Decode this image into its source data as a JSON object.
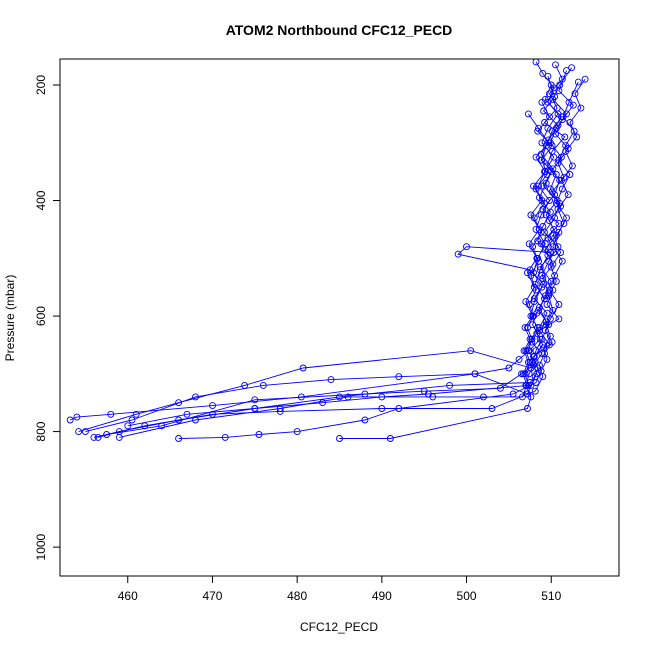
{
  "chart_data": {
    "type": "line",
    "title": "ATOM2 Northbound CFC12_PECD",
    "xlabel": "CFC12_PECD",
    "ylabel": "Pressure (mbar)",
    "xlim": [
      452,
      518
    ],
    "ylim": [
      1050,
      155
    ],
    "y_reversed": true,
    "xticks": [
      460,
      470,
      480,
      490,
      500,
      510
    ],
    "yticks": [
      200,
      400,
      600,
      800,
      1000
    ],
    "grid": false,
    "legend": "none",
    "color": "#0000ff",
    "marker": "open-circle",
    "series": [
      {
        "x": [
          508.2,
          509.0,
          510.3,
          509.6,
          511.2,
          510.1,
          509.4,
          508.8,
          510.6,
          509.9,
          511.0,
          510.4,
          509.2,
          510.8,
          509.7,
          508.9,
          510.2,
          509.5,
          510.9,
          508.6,
          509.8,
          507.9,
          508.4,
          508.1,
          507.6,
          507.2,
          501.0,
          480.5,
          470.0,
          458.0,
          454.0,
          453.2
        ],
        "y": [
          160,
          180,
          205,
          230,
          255,
          280,
          305,
          330,
          355,
          380,
          405,
          430,
          455,
          480,
          505,
          530,
          555,
          580,
          605,
          625,
          650,
          670,
          690,
          705,
          720,
          735,
          700,
          740,
          755,
          770,
          775,
          780
        ]
      },
      {
        "x": [
          510.5,
          511.3,
          509.8,
          510.7,
          509.2,
          511.6,
          510.1,
          509.5,
          511.0,
          510.4,
          509.0,
          510.9,
          509.6,
          510.3,
          508.7,
          510.0,
          509.3,
          508.5,
          509.7,
          508.9,
          508.2,
          507.8,
          508.3,
          507.5,
          498.0,
          485.0,
          475.0,
          466.0,
          459.0,
          456.5
        ],
        "y": [
          165,
          190,
          215,
          240,
          265,
          290,
          315,
          340,
          365,
          390,
          415,
          440,
          465,
          490,
          515,
          540,
          565,
          590,
          615,
          640,
          660,
          680,
          700,
          715,
          720,
          740,
          760,
          780,
          800,
          810
        ]
      },
      {
        "x": [
          512.4,
          511.0,
          510.2,
          511.8,
          510.6,
          509.9,
          511.2,
          510.0,
          509.1,
          510.7,
          509.4,
          510.3,
          508.8,
          509.9,
          500.0,
          499.0,
          507.5,
          509.1,
          508.0,
          509.5,
          508.6,
          507.7,
          508.9,
          507.9,
          506.5,
          504.0,
          495.0,
          488.0,
          475.0,
          464.0,
          457.5
        ],
        "y": [
          170,
          200,
          225,
          250,
          275,
          300,
          325,
          350,
          375,
          400,
          425,
          450,
          475,
          490,
          480,
          493,
          520,
          545,
          570,
          595,
          620,
          645,
          665,
          685,
          700,
          725,
          730,
          735,
          745,
          790,
          805
        ]
      },
      {
        "x": [
          511.8,
          510.9,
          512.6,
          511.3,
          510.5,
          512.0,
          510.8,
          511.5,
          510.1,
          511.1,
          509.8,
          510.6,
          509.3,
          510.2,
          509.0,
          509.7,
          508.6,
          509.4,
          508.3,
          509.0,
          508.0,
          507.6,
          500.5,
          480.7,
          473.8,
          466.0,
          461.0,
          454.2
        ],
        "y": [
          175,
          210,
          235,
          260,
          285,
          310,
          335,
          360,
          385,
          410,
          435,
          460,
          485,
          510,
          535,
          560,
          585,
          610,
          630,
          650,
          670,
          690,
          660,
          690,
          720,
          750,
          770,
          800
        ]
      },
      {
        "x": [
          509.6,
          510.4,
          509.1,
          510.8,
          509.7,
          508.8,
          510.2,
          509.4,
          508.6,
          509.9,
          509.0,
          508.4,
          509.6,
          508.7,
          508.1,
          509.2,
          508.3,
          507.8,
          508.7,
          507.4,
          506.2,
          505.0,
          501.0,
          492.0,
          484.0,
          476.0,
          468.0,
          460.5,
          455.0
        ],
        "y": [
          185,
          220,
          245,
          270,
          295,
          320,
          345,
          370,
          395,
          420,
          445,
          470,
          495,
          520,
          545,
          570,
          595,
          615,
          640,
          660,
          675,
          690,
          700,
          705,
          710,
          720,
          740,
          780,
          800
        ]
      },
      {
        "x": [
          513.2,
          512.1,
          511.4,
          512.7,
          511.7,
          510.9,
          512.2,
          511.3,
          510.6,
          511.8,
          510.9,
          510.2,
          511.3,
          510.4,
          509.8,
          510.9,
          509.9,
          509.3,
          510.1,
          509.2,
          508.6,
          509.0,
          508.1,
          503.0,
          490.0,
          478.0,
          470.0,
          462.0,
          456.0
        ],
        "y": [
          195,
          230,
          255,
          280,
          305,
          330,
          355,
          380,
          405,
          430,
          455,
          480,
          505,
          530,
          555,
          580,
          605,
          625,
          645,
          665,
          685,
          705,
          730,
          760,
          760,
          765,
          770,
          790,
          810
        ]
      },
      {
        "x": [
          507.3,
          508.5,
          509.7,
          508.2,
          509.3,
          507.9,
          508.9,
          507.6,
          508.6,
          507.4,
          508.3,
          507.2,
          508.0,
          507.0,
          507.8,
          506.9,
          507.5,
          506.8,
          507.3,
          506.7,
          507.1,
          506.6,
          502.0,
          496.0,
          486.0,
          478.0,
          468.0,
          459.0
        ],
        "y": [
          250,
          275,
          300,
          325,
          350,
          375,
          400,
          425,
          450,
          475,
          500,
          525,
          550,
          575,
          600,
          620,
          640,
          660,
          680,
          700,
          720,
          740,
          740,
          740,
          740,
          760,
          780,
          810
        ]
      },
      {
        "x": [
          514.0,
          512.8,
          513.5,
          512.2,
          513.0,
          511.7,
          512.5,
          511.2,
          512.0,
          510.8,
          511.5,
          510.4,
          511.1,
          510.0,
          510.6,
          509.7,
          510.2,
          509.4,
          509.9,
          509.1,
          509.5,
          508.8,
          508.2,
          505.5,
          492.0,
          488.0,
          480.0,
          475.5,
          471.5,
          466.0
        ],
        "y": [
          190,
          215,
          240,
          265,
          290,
          315,
          340,
          365,
          390,
          415,
          440,
          465,
          490,
          515,
          540,
          565,
          590,
          615,
          635,
          655,
          675,
          695,
          715,
          735,
          760,
          780,
          800,
          805,
          810,
          812
        ]
      },
      {
        "x": [
          510.0,
          509.3,
          510.8,
          509.6,
          508.9,
          510.3,
          509.2,
          508.5,
          509.8,
          508.8,
          508.2,
          509.3,
          508.4,
          507.9,
          508.9,
          508.0,
          507.6,
          508.4,
          507.7,
          507.3,
          508.1,
          507.4,
          507.0,
          507.6,
          507.2,
          491.0,
          485.0
        ],
        "y": [
          200,
          225,
          250,
          275,
          300,
          325,
          350,
          375,
          400,
          425,
          450,
          475,
          500,
          525,
          550,
          575,
          600,
          620,
          640,
          660,
          680,
          700,
          720,
          740,
          760,
          812,
          812
        ]
      },
      {
        "x": [
          508.9,
          509.8,
          508.4,
          510.1,
          508.9,
          509.5,
          508.2,
          509.2,
          508.0,
          508.8,
          507.8,
          508.5,
          507.6,
          508.2,
          507.4,
          507.9,
          507.2,
          507.7,
          507.0,
          507.5,
          506.9,
          507.3,
          495.5,
          490.0,
          483.0,
          475.0,
          467.0,
          460.0
        ],
        "y": [
          230,
          255,
          280,
          305,
          330,
          355,
          380,
          405,
          430,
          455,
          480,
          505,
          530,
          555,
          580,
          600,
          620,
          640,
          660,
          680,
          700,
          720,
          735,
          740,
          750,
          760,
          770,
          790
        ]
      }
    ]
  }
}
